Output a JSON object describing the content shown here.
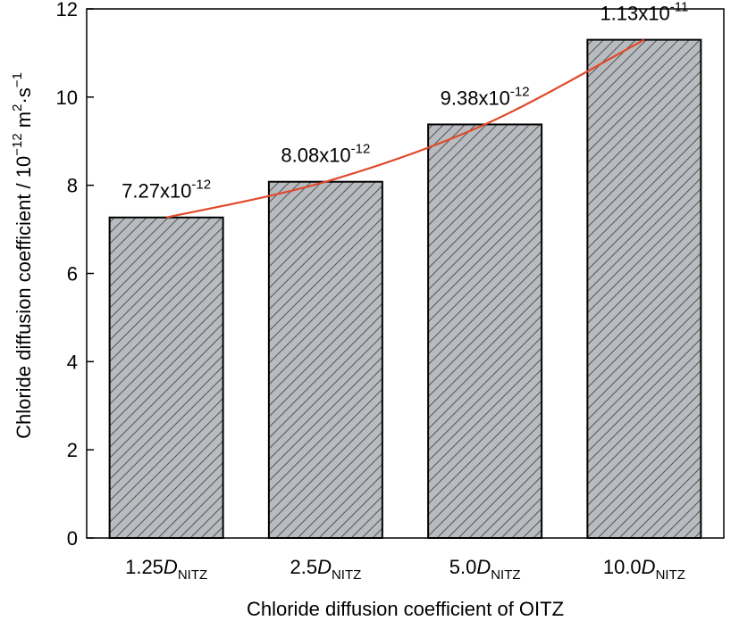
{
  "chart_data": {
    "type": "bar",
    "title": "",
    "xlabel": "Chloride diffusion coefficient  of OITZ",
    "ylabel": {
      "main": "Chloride diffusion coefficient  / 10",
      "exp1": "−12",
      "mid": " m",
      "exp2": "2",
      "dot": "·s",
      "exp3": "−1"
    },
    "ylim": [
      0,
      12
    ],
    "yticks": [
      "0",
      "2",
      "4",
      "6",
      "8",
      "10",
      "12"
    ],
    "categories": [
      {
        "prefix": "1.25",
        "italic": "D",
        "sub": "NITZ"
      },
      {
        "prefix": "2.5",
        "italic": "D",
        "sub": "NITZ"
      },
      {
        "prefix": "5.0",
        "italic": "D",
        "sub": "NITZ"
      },
      {
        "prefix": "10.0",
        "italic": "D",
        "sub": "NITZ"
      }
    ],
    "values": [
      7.27,
      8.08,
      9.38,
      11.3
    ],
    "data_labels": [
      {
        "base": "7.27x10",
        "exp": "-12"
      },
      {
        "base": "8.08x10",
        "exp": "-12"
      },
      {
        "base": "9.38x10",
        "exp": "-12"
      },
      {
        "base": "1.13x10",
        "exp": "-11"
      }
    ],
    "bar_fill": "#b8bcc0",
    "hatch_color": "#555555",
    "bar_edge": "#000000",
    "trend_color": "#e04a2a",
    "grid": false,
    "legend": "none"
  }
}
